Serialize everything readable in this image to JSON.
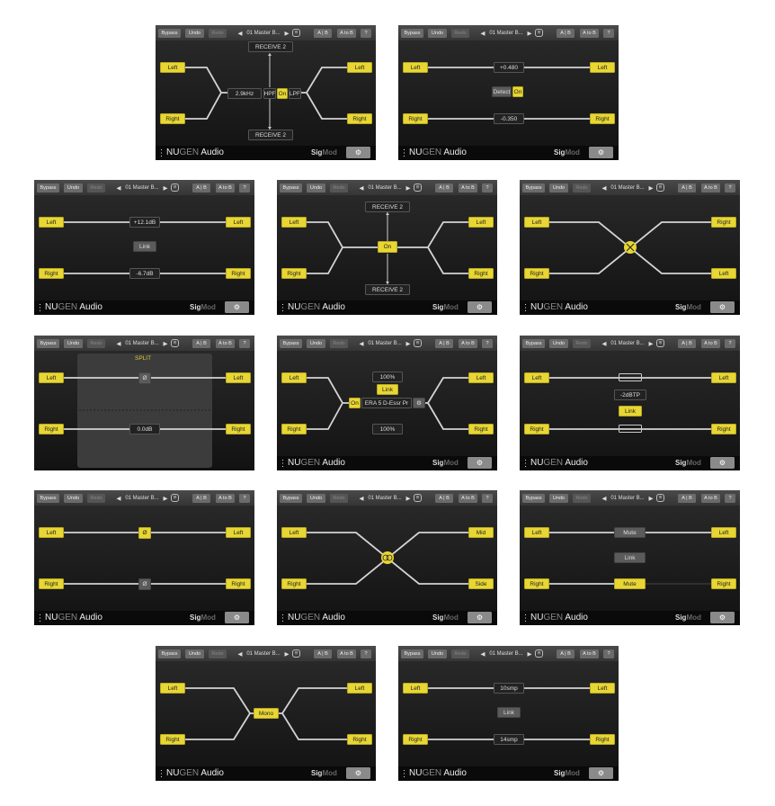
{
  "toolbar": {
    "bypass": "Bypass",
    "undo": "Undo",
    "redo": "Redo",
    "prev": "◀",
    "preset": "01 Master B...",
    "next": "▶",
    "ab": "A | B",
    "a_to_b": "A to B",
    "help": "?"
  },
  "footer": {
    "brand_a": "NU",
    "brand_b": "GEN",
    "brand_c": " Audio",
    "product_a": "Sig",
    "product_b": "Mod",
    "settings_icon": "gear-icon"
  },
  "colors": {
    "accent": "#e8d634",
    "background": "#1a1a1a"
  },
  "panels": [
    {
      "kind": "band-split",
      "inputs": [
        "Left",
        "Right"
      ],
      "outputs": [
        "Left",
        "Right"
      ],
      "w": {
        "freq": "2.9kHz",
        "hpf": "HPF",
        "on": "On",
        "lpf": "LPF",
        "receive_top": "RECEIVE 2",
        "receive_bottom": "RECEIVE 2"
      }
    },
    {
      "kind": "dc-offset",
      "inputs": [
        "Left",
        "Right"
      ],
      "outputs": [
        "Left",
        "Right"
      ],
      "w": {
        "top": "+0.480",
        "detect": "Detect",
        "on": "On",
        "bottom": "-0.350"
      }
    },
    {
      "kind": "gain",
      "inputs": [
        "Left",
        "Right"
      ],
      "outputs": [
        "Left",
        "Right"
      ],
      "w": {
        "top": "+12.1dB",
        "link": "Link",
        "bottom": "-6.7dB"
      }
    },
    {
      "kind": "send",
      "inputs": [
        "Left",
        "Right"
      ],
      "outputs": [
        "Left",
        "Right"
      ],
      "w": {
        "on": "On",
        "receive_top": "RECEIVE 2",
        "receive_bottom": "RECEIVE 2"
      }
    },
    {
      "kind": "swap",
      "inputs": [
        "Left",
        "Right"
      ],
      "outputs": [
        "Right",
        "Left"
      ],
      "w": {}
    },
    {
      "kind": "split-phase",
      "inputs": [
        "Left",
        "Right"
      ],
      "outputs": [
        "Left",
        "Right"
      ],
      "w": {
        "title": "SPLIT",
        "phase": "Ø",
        "bottom": "0.0dB"
      }
    },
    {
      "kind": "plugin-insert",
      "inputs": [
        "Left",
        "Right"
      ],
      "outputs": [
        "Left",
        "Right"
      ],
      "w": {
        "top": "100%",
        "link": "Link",
        "on": "On",
        "plugin": "ERA 5 D-Essr Pr",
        "bottom": "100%"
      }
    },
    {
      "kind": "limiter",
      "inputs": [
        "Left",
        "Right"
      ],
      "outputs": [
        "Left",
        "Right"
      ],
      "w": {
        "ceiling": "-2dBTP",
        "link": "Link"
      }
    },
    {
      "kind": "polarity",
      "inputs": [
        "Left",
        "Right"
      ],
      "outputs": [
        "Left",
        "Right"
      ],
      "w": {
        "top": "Ø",
        "bottom": "Ø"
      }
    },
    {
      "kind": "mid-side",
      "inputs": [
        "Left",
        "Right"
      ],
      "outputs": [
        "Mid",
        "Side"
      ],
      "w": {}
    },
    {
      "kind": "mute",
      "inputs": [
        "Left",
        "Right"
      ],
      "outputs": [
        "Left",
        "Right"
      ],
      "w": {
        "top": "Mute",
        "link": "Link",
        "bottom": "Mute"
      }
    },
    {
      "kind": "mono",
      "inputs": [
        "Left",
        "Right"
      ],
      "outputs": [
        "Left",
        "Right"
      ],
      "w": {
        "mono": "Mono"
      }
    },
    {
      "kind": "delay",
      "inputs": [
        "Left",
        "Right"
      ],
      "outputs": [
        "Left",
        "Right"
      ],
      "w": {
        "top": "10smp",
        "link": "Link",
        "bottom": "14smp"
      }
    }
  ]
}
